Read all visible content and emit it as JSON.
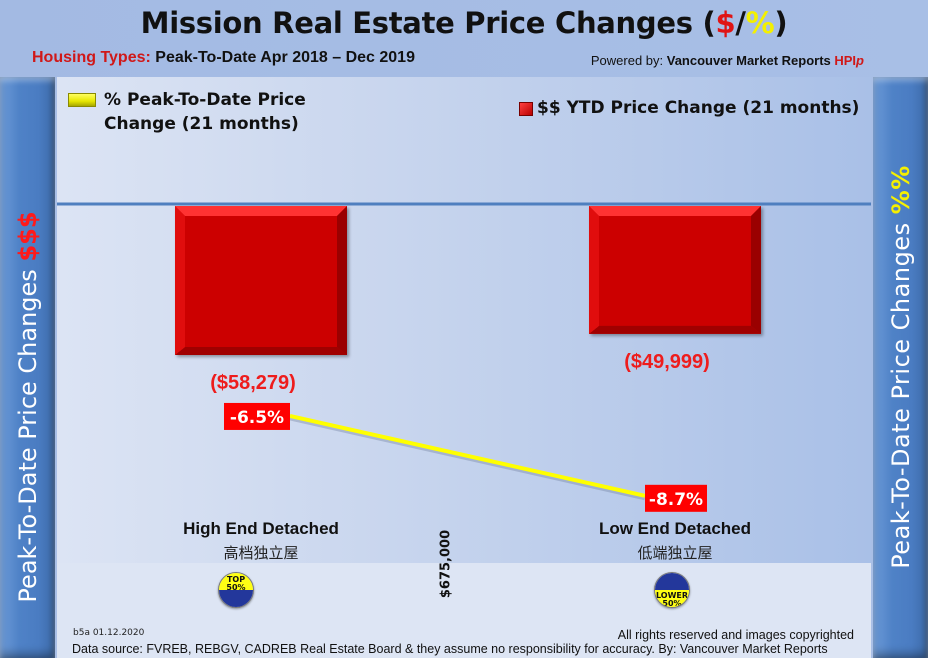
{
  "header": {
    "title_main": "Mission Real Estate Price Changes (",
    "title_dollar": "$",
    "title_slash": "/",
    "title_pct": "%",
    "title_close": ")",
    "subtitle_lead": "Housing Types:",
    "subtitle_rest": " Peak-To-Date Apr 2018 – Dec 2019",
    "powered_prefix": "Powered by: ",
    "powered_brand": "Vancouver Market Reports ",
    "powered_hpi": "HPI",
    "powered_hpi_suffix": "p"
  },
  "side_labels": {
    "left_text": "Peak-To-Date Price Changes ",
    "left_symbol": "$$$",
    "right_text": "Peak-To-Date  Price  Changes ",
    "right_symbol": "%%"
  },
  "colors": {
    "bar": "#cc0606",
    "bar_label": "#ee1c1c",
    "line": "#ffff00",
    "pct_box": "#ff0000",
    "axis": "#4f7fbf"
  },
  "chart_data": {
    "type": "bar",
    "title": "Mission Real Estate Price Changes ($/%)",
    "subtitle": "Housing Types: Peak-To-Date Apr 2018 – Dec 2019",
    "categories": [
      "High End Detached",
      "Low End Detached"
    ],
    "categories_zh": [
      "高档独立屋",
      "低端独立屋"
    ],
    "category_badges": [
      "TOP 50%",
      "LOWER 50%"
    ],
    "divider_price": "$675,000",
    "series": [
      {
        "name": "$$ YTD Price Change (21 months)",
        "type": "bar",
        "axis": "left",
        "values": [
          -58279,
          -49999
        ],
        "labels": [
          "($58,279)",
          "($49,999)"
        ]
      },
      {
        "name": "% Peak-To-Date Price Change (21 months)",
        "type": "line",
        "axis": "right",
        "values": [
          -6.5,
          -8.7
        ],
        "labels": [
          "-6.5%",
          "-8.7%"
        ]
      }
    ],
    "ylabel_left": "Peak-To-Date Price Changes $$$",
    "ylabel_right": "Peak-To-Date Price Changes %%",
    "legend": [
      "% Peak-To-Date Price Change (21 months)",
      "$$ YTD Price Change (21 months)"
    ],
    "legend_placement": "top",
    "grid": false
  },
  "footer": {
    "id": "b5a 01.12.2020",
    "rights": "All rights reserved and  images copyrighted",
    "source": "Data source: FVREB, REBGV, CADREB Real Estate Board & they assume no responsibility for accuracy. By: Vancouver Market Reports"
  }
}
